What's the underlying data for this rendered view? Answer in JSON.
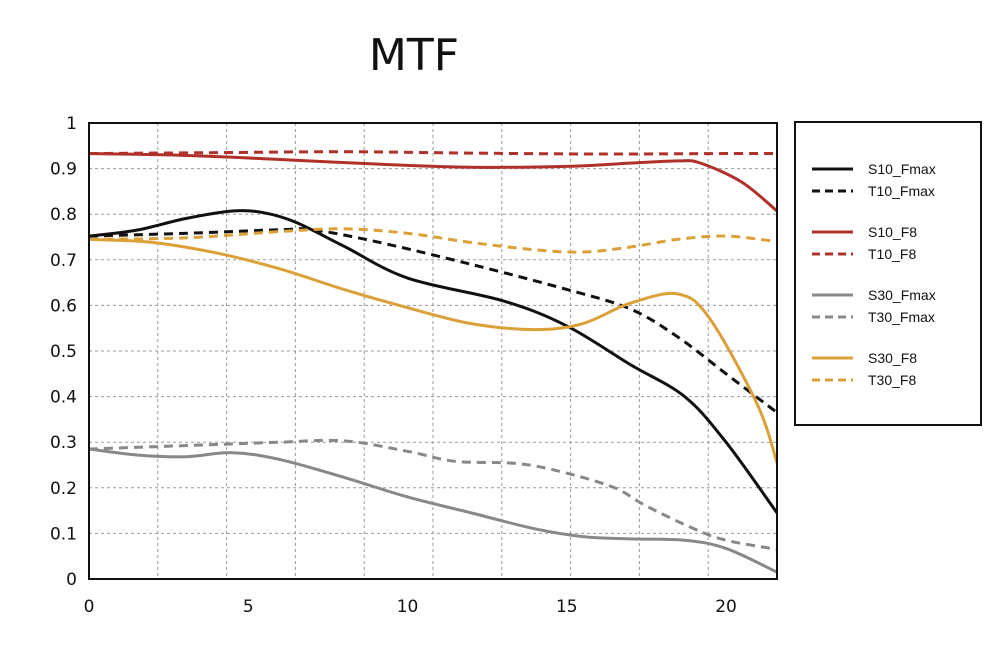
{
  "chart_data": {
    "type": "line",
    "title": "MTF",
    "xlabel": "",
    "ylabel": "",
    "xlim": [
      0,
      21.6
    ],
    "ylim": [
      0,
      1
    ],
    "x_ticks": [
      0,
      5,
      10,
      15,
      20
    ],
    "x_tick_labels": [
      "0",
      "5",
      "10",
      "15",
      "20"
    ],
    "y_ticks": [
      0,
      0.1,
      0.2,
      0.3,
      0.4,
      0.5,
      0.6,
      0.7,
      0.8,
      0.9,
      1
    ],
    "y_tick_labels": [
      "0",
      "0.1",
      "0.2",
      "0.3",
      "0.4",
      "0.5",
      "0.6",
      "0.7",
      "0.8",
      "0.9",
      "1"
    ],
    "x_grid": [
      2.16,
      4.32,
      6.48,
      8.64,
      10.8,
      12.96,
      15.12,
      17.28,
      19.44
    ],
    "grid": true,
    "legend_position": "right",
    "series": [
      {
        "name": "S10_Fmax",
        "color": "#111111",
        "dash": "solid",
        "x": [
          0,
          1.5,
          3,
          4.5,
          5.5,
          6.5,
          8,
          10,
          13,
          15,
          17,
          18.7,
          20,
          21.6
        ],
        "y": [
          0.752,
          0.765,
          0.79,
          0.807,
          0.803,
          0.782,
          0.73,
          0.66,
          0.61,
          0.555,
          0.47,
          0.4,
          0.3,
          0.145
        ]
      },
      {
        "name": "T10_Fmax",
        "color": "#111111",
        "dash": "dashed",
        "x": [
          0,
          3,
          6,
          7,
          9,
          12,
          15,
          17,
          18.5,
          20,
          21.6
        ],
        "y": [
          0.752,
          0.758,
          0.766,
          0.766,
          0.74,
          0.69,
          0.635,
          0.592,
          0.53,
          0.45,
          0.365
        ]
      },
      {
        "name": "S10_F8",
        "color": "#b0302a",
        "dash": "solid",
        "x": [
          0,
          3,
          6,
          9,
          12,
          15,
          17,
          18.5,
          19.2,
          20.5,
          21.6
        ],
        "y": [
          0.933,
          0.929,
          0.92,
          0.91,
          0.903,
          0.905,
          0.912,
          0.917,
          0.912,
          0.87,
          0.807
        ]
      },
      {
        "name": "T10_F8",
        "color": "#b0302a",
        "dash": "dashed",
        "x": [
          0,
          4,
          8,
          12,
          16,
          20,
          21.6
        ],
        "y": [
          0.933,
          0.935,
          0.937,
          0.934,
          0.932,
          0.933,
          0.933
        ]
      },
      {
        "name": "S30_Fmax",
        "color": "#888888",
        "dash": "solid",
        "x": [
          0,
          1.5,
          3,
          4.5,
          6,
          8,
          10,
          12,
          14,
          15.5,
          17,
          18.7,
          20,
          21.6
        ],
        "y": [
          0.285,
          0.272,
          0.268,
          0.277,
          0.262,
          0.223,
          0.18,
          0.145,
          0.11,
          0.093,
          0.088,
          0.085,
          0.067,
          0.015
        ]
      },
      {
        "name": "T30_Fmax",
        "color": "#888888",
        "dash": "dashed",
        "x": [
          0,
          2,
          4,
          6,
          8,
          10,
          11.5,
          13.5,
          15,
          16.5,
          17.5,
          19,
          20,
          21.6
        ],
        "y": [
          0.285,
          0.29,
          0.295,
          0.3,
          0.303,
          0.28,
          0.258,
          0.253,
          0.232,
          0.2,
          0.16,
          0.11,
          0.085,
          0.065
        ]
      },
      {
        "name": "S30_F8",
        "color": "#dba037",
        "dash": "solid",
        "x": [
          0,
          2,
          4,
          6,
          8,
          10,
          12,
          14,
          15.5,
          17,
          18.5,
          19.5,
          21,
          21.6
        ],
        "y": [
          0.745,
          0.738,
          0.715,
          0.68,
          0.635,
          0.595,
          0.56,
          0.547,
          0.56,
          0.605,
          0.625,
          0.57,
          0.38,
          0.255
        ]
      },
      {
        "name": "T30_F8",
        "color": "#dba037",
        "dash": "dashed",
        "x": [
          0,
          3,
          6,
          8,
          10,
          12,
          14,
          15.5,
          17,
          18.5,
          20,
          21.6
        ],
        "y": [
          0.745,
          0.748,
          0.762,
          0.768,
          0.758,
          0.738,
          0.722,
          0.717,
          0.728,
          0.745,
          0.752,
          0.74
        ]
      }
    ],
    "legend_groups": [
      [
        "S10_Fmax",
        "T10_Fmax"
      ],
      [
        "S10_F8",
        "T10_F8"
      ],
      [
        "S30_Fmax",
        "T30_Fmax"
      ],
      [
        "S30_F8",
        "T30_F8"
      ]
    ]
  }
}
